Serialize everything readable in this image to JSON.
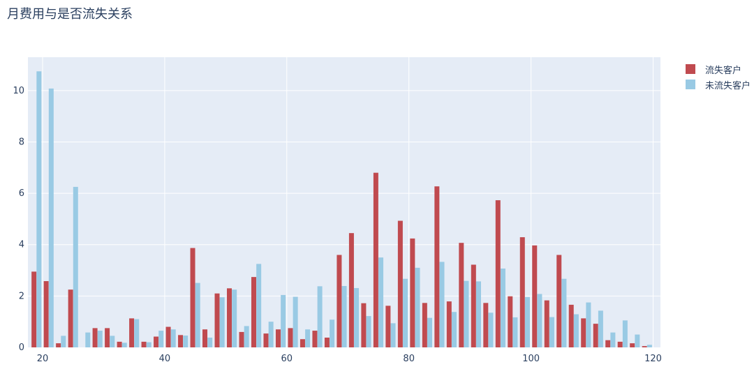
{
  "chart_data": {
    "type": "bar",
    "title": "月费用与是否流失关系",
    "xlabel": "",
    "ylabel": "",
    "xlim": [
      17.6,
      121.2
    ],
    "ylim": [
      0,
      11.3
    ],
    "xticks": [
      20,
      40,
      60,
      80,
      100,
      120
    ],
    "yticks": [
      0,
      2,
      4,
      6,
      8,
      10
    ],
    "grid": true,
    "legend_position": "top-right",
    "x": [
      19,
      21,
      23,
      25,
      27,
      29,
      31,
      33,
      35,
      37,
      39,
      41,
      43,
      45,
      47,
      49,
      51,
      53,
      55,
      57,
      59,
      61,
      63,
      65,
      67,
      69,
      71,
      73,
      75,
      77,
      79,
      81,
      83,
      85,
      87,
      89,
      91,
      93,
      95,
      97,
      99,
      101,
      103,
      105,
      107,
      109,
      111,
      113,
      115,
      117,
      119
    ],
    "series": [
      {
        "name": "流失客户",
        "color": "#c04a4f",
        "values": [
          2.95,
          2.58,
          0.16,
          2.25,
          0.0,
          0.75,
          0.75,
          0.22,
          1.13,
          0.22,
          0.42,
          0.8,
          0.48,
          3.87,
          0.7,
          2.1,
          2.3,
          0.6,
          2.74,
          0.54,
          0.7,
          0.75,
          0.32,
          0.65,
          0.38,
          3.6,
          4.45,
          1.72,
          6.8,
          1.62,
          4.93,
          4.24,
          1.73,
          6.27,
          1.79,
          4.07,
          3.22,
          1.73,
          5.73,
          1.99,
          4.29,
          3.97,
          1.83,
          3.6,
          1.66,
          1.13,
          0.92,
          0.28,
          0.22,
          0.16,
          0.05
        ]
      },
      {
        "name": "未流失客户",
        "color": "#99cae4",
        "values": [
          10.75,
          10.08,
          0.45,
          6.25,
          0.58,
          0.65,
          0.45,
          0.18,
          1.1,
          0.2,
          0.65,
          0.7,
          0.46,
          2.51,
          0.38,
          1.95,
          2.25,
          0.83,
          3.25,
          1.0,
          2.04,
          1.97,
          0.7,
          2.38,
          1.08,
          2.39,
          2.31,
          1.22,
          3.5,
          0.94,
          2.67,
          3.1,
          1.15,
          3.33,
          1.38,
          2.59,
          2.57,
          1.35,
          3.07,
          1.17,
          1.96,
          2.08,
          1.18,
          2.67,
          1.29,
          1.75,
          1.43,
          0.58,
          1.05,
          0.5,
          0.1
        ]
      }
    ]
  }
}
